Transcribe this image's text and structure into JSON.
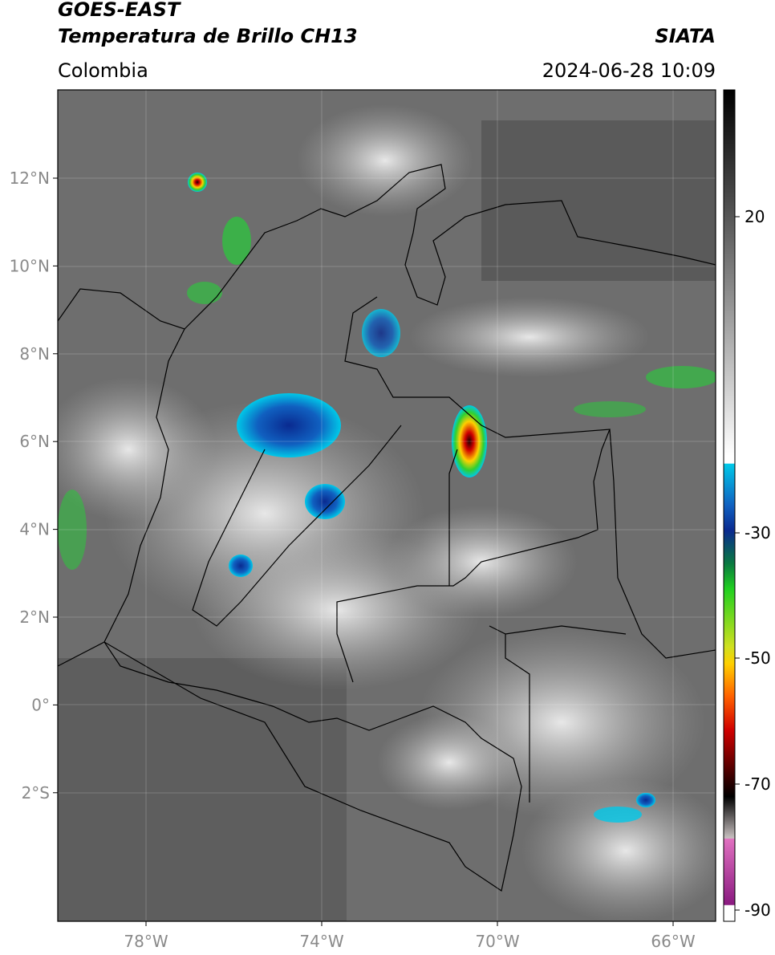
{
  "header": {
    "title": "GOES-EAST",
    "subtitle": "Temperatura de Brillo CH13",
    "source": "SIATA",
    "region": "Colombia",
    "datetime": "2024-06-28 10:09"
  },
  "map": {
    "lat_labels": [
      "12°N",
      "10°N",
      "8°N",
      "6°N",
      "4°N",
      "2°N",
      "0°",
      "2°S"
    ],
    "lon_labels": [
      "78°W",
      "74°W",
      "70°W",
      "66°W"
    ]
  },
  "colorbar": {
    "tick_labels": [
      "20",
      "-30",
      "-50",
      "-70",
      "-90"
    ]
  }
}
